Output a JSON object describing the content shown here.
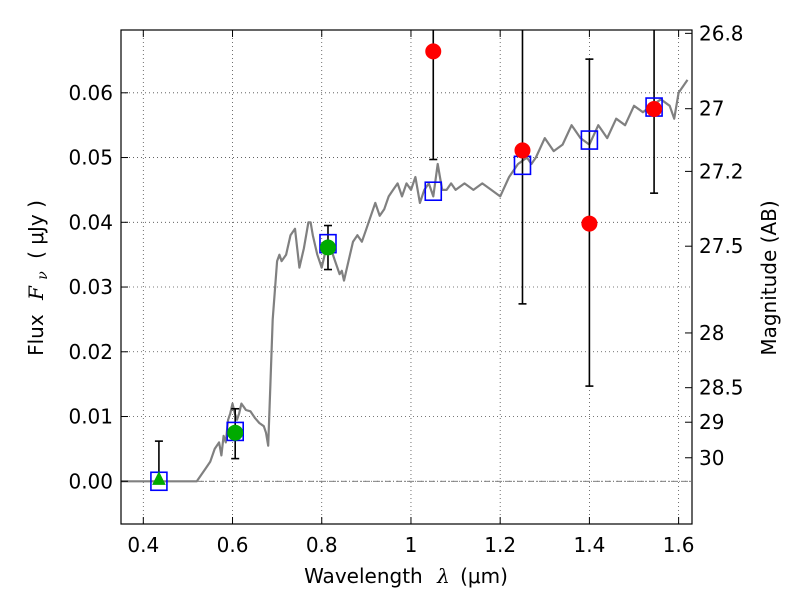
{
  "chart_data": {
    "type": "scatter",
    "xlabel_prefix": "Wavelength",
    "xlabel_symbol": "λ",
    "xlabel_units": "(μm)",
    "ylabel_prefix": "Flux",
    "ylabel_symbol": "F",
    "ylabel_subscript": "ν",
    "ylabel_units": "( μJy )",
    "y2label": "Magnitude (AB)",
    "xlim": [
      0.35,
      1.63
    ],
    "ylim": [
      -0.0066,
      0.0697
    ],
    "grid": true,
    "x_ticks": [
      {
        "value": 0.4,
        "label": "0.4"
      },
      {
        "value": 0.6,
        "label": "0.6"
      },
      {
        "value": 0.8,
        "label": "0.8"
      },
      {
        "value": 1.0,
        "label": "1"
      },
      {
        "value": 1.2,
        "label": "1.2"
      },
      {
        "value": 1.4,
        "label": "1.4"
      },
      {
        "value": 1.6,
        "label": "1.6"
      }
    ],
    "y_ticks": [
      {
        "value": 0.0,
        "label": "0.00"
      },
      {
        "value": 0.01,
        "label": "0.01"
      },
      {
        "value": 0.02,
        "label": "0.02"
      },
      {
        "value": 0.03,
        "label": "0.03"
      },
      {
        "value": 0.04,
        "label": "0.04"
      },
      {
        "value": 0.05,
        "label": "0.05"
      },
      {
        "value": 0.06,
        "label": "0.06"
      }
    ],
    "y2_ticks": [
      {
        "magnitude": 26.8,
        "label": "26.8"
      },
      {
        "magnitude": 27.0,
        "label": "27"
      },
      {
        "magnitude": 27.2,
        "label": "27.2"
      },
      {
        "magnitude": 27.5,
        "label": "27.5"
      },
      {
        "magnitude": 28.0,
        "label": "28"
      },
      {
        "magnitude": 28.5,
        "label": "28.5"
      },
      {
        "magnitude": 29.0,
        "label": "29"
      },
      {
        "magnitude": 30.0,
        "label": "30"
      }
    ],
    "model_spectrum": {
      "color": "#808080",
      "x": [
        0.35,
        0.52,
        0.54,
        0.55,
        0.56,
        0.57,
        0.575,
        0.58,
        0.585,
        0.59,
        0.595,
        0.6,
        0.605,
        0.61,
        0.615,
        0.62,
        0.625,
        0.63,
        0.64,
        0.65,
        0.66,
        0.67,
        0.675,
        0.68,
        0.685,
        0.69,
        0.7,
        0.705,
        0.71,
        0.72,
        0.73,
        0.74,
        0.745,
        0.75,
        0.76,
        0.77,
        0.775,
        0.78,
        0.79,
        0.8,
        0.81,
        0.815,
        0.82,
        0.83,
        0.84,
        0.845,
        0.85,
        0.86,
        0.87,
        0.88,
        0.89,
        0.9,
        0.92,
        0.93,
        0.94,
        0.95,
        0.96,
        0.97,
        0.98,
        0.99,
        1.0,
        1.01,
        1.02,
        1.03,
        1.04,
        1.05,
        1.06,
        1.07,
        1.08,
        1.09,
        1.1,
        1.12,
        1.14,
        1.16,
        1.18,
        1.2,
        1.22,
        1.24,
        1.25,
        1.26,
        1.27,
        1.28,
        1.3,
        1.32,
        1.34,
        1.36,
        1.38,
        1.4,
        1.42,
        1.44,
        1.46,
        1.48,
        1.5,
        1.52,
        1.54,
        1.56,
        1.58,
        1.59,
        1.6,
        1.61,
        1.62
      ],
      "y": [
        0.0,
        0.0,
        0.002,
        0.003,
        0.005,
        0.006,
        0.004,
        0.007,
        0.006,
        0.0095,
        0.0105,
        0.012,
        0.0105,
        0.0095,
        0.0105,
        0.012,
        0.0115,
        0.011,
        0.0108,
        0.0098,
        0.009,
        0.0085,
        0.0075,
        0.0055,
        0.015,
        0.025,
        0.034,
        0.035,
        0.034,
        0.035,
        0.038,
        0.039,
        0.036,
        0.033,
        0.036,
        0.04,
        0.04,
        0.038,
        0.035,
        0.033,
        0.036,
        0.037,
        0.036,
        0.034,
        0.032,
        0.0325,
        0.031,
        0.034,
        0.037,
        0.038,
        0.037,
        0.039,
        0.043,
        0.041,
        0.042,
        0.044,
        0.045,
        0.046,
        0.044,
        0.046,
        0.045,
        0.047,
        0.043,
        0.045,
        0.046,
        0.044,
        0.049,
        0.045,
        0.045,
        0.046,
        0.045,
        0.046,
        0.045,
        0.046,
        0.045,
        0.044,
        0.047,
        0.049,
        0.0495,
        0.05,
        0.049,
        0.05,
        0.053,
        0.051,
        0.052,
        0.055,
        0.053,
        0.052,
        0.055,
        0.053,
        0.056,
        0.055,
        0.058,
        0.057,
        0.058,
        0.059,
        0.058,
        0.056,
        0.06,
        0.061,
        0.062
      ]
    },
    "model_bands": {
      "color": "#0000ff",
      "points": [
        {
          "x": 0.435,
          "y": 0.0
        },
        {
          "x": 0.606,
          "y": 0.0077
        },
        {
          "x": 0.814,
          "y": 0.0367
        },
        {
          "x": 1.05,
          "y": 0.0448
        },
        {
          "x": 1.25,
          "y": 0.0488
        },
        {
          "x": 1.4,
          "y": 0.0527
        },
        {
          "x": 1.545,
          "y": 0.0578
        }
      ]
    },
    "observed": [
      {
        "x": 0.435,
        "y": 0.0003,
        "err_low": 0.0,
        "err_high": 0.0062,
        "color": "#00aa00",
        "marker": "triangle"
      },
      {
        "x": 0.606,
        "y": 0.0075,
        "err_low": 0.0035,
        "err_high": 0.0112,
        "color": "#00aa00",
        "marker": "circle"
      },
      {
        "x": 0.814,
        "y": 0.0361,
        "err_low": 0.0327,
        "err_high": 0.0395,
        "color": "#00aa00",
        "marker": "circle"
      },
      {
        "x": 1.05,
        "y": 0.0664,
        "err_low": 0.0497,
        "err_high": 0.0697,
        "color": "#ff0000",
        "marker": "circle"
      },
      {
        "x": 1.25,
        "y": 0.0511,
        "err_low": 0.0274,
        "err_high": 0.0697,
        "color": "#ff0000",
        "marker": "circle"
      },
      {
        "x": 1.4,
        "y": 0.0398,
        "err_low": 0.0147,
        "err_high": 0.0652,
        "color": "#ff0000",
        "marker": "circle"
      },
      {
        "x": 1.545,
        "y": 0.0575,
        "err_low": 0.0445,
        "err_high": 0.0697,
        "color": "#ff0000",
        "marker": "circle"
      }
    ]
  }
}
